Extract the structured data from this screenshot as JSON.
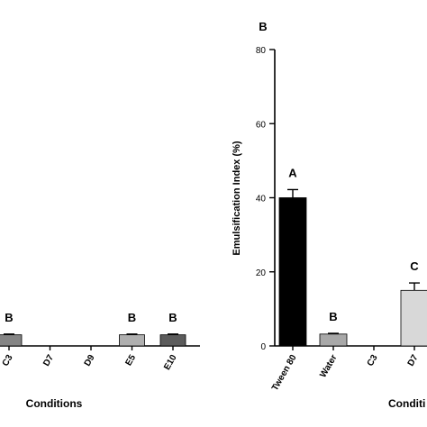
{
  "chart_data": [
    {
      "type": "bar",
      "panel_label": "",
      "xlabel": "Conditions",
      "ylabel": "",
      "categories": [
        "C3",
        "D7",
        "D9",
        "E5",
        "E10"
      ],
      "values": [
        3,
        0,
        0,
        3,
        3
      ],
      "errors": [
        0.2,
        0,
        0,
        0.2,
        0.2
      ],
      "letters": [
        "B",
        "",
        "",
        "B",
        "B"
      ],
      "colors": [
        "#858585",
        "#ffffff",
        "#ffffff",
        "#b0b0b0",
        "#5c5c5c"
      ],
      "ylim": [
        0,
        80
      ],
      "grid": false
    },
    {
      "type": "bar",
      "panel_label": "B",
      "xlabel": "Conditi",
      "ylabel": "Emulsification  Index (%)",
      "categories": [
        "Tween 80",
        "Water",
        "C3",
        "D7"
      ],
      "values": [
        40,
        3.2,
        0,
        15
      ],
      "errors": [
        2.2,
        0.2,
        0,
        2
      ],
      "letters": [
        "A",
        "B",
        "",
        "C"
      ],
      "colors": [
        "#000000",
        "#a8a8a8",
        "#ffffff",
        "#d8d8d8"
      ],
      "yticks": [
        0,
        20,
        40,
        60,
        80
      ],
      "ylim": [
        0,
        80
      ],
      "grid": false
    }
  ]
}
